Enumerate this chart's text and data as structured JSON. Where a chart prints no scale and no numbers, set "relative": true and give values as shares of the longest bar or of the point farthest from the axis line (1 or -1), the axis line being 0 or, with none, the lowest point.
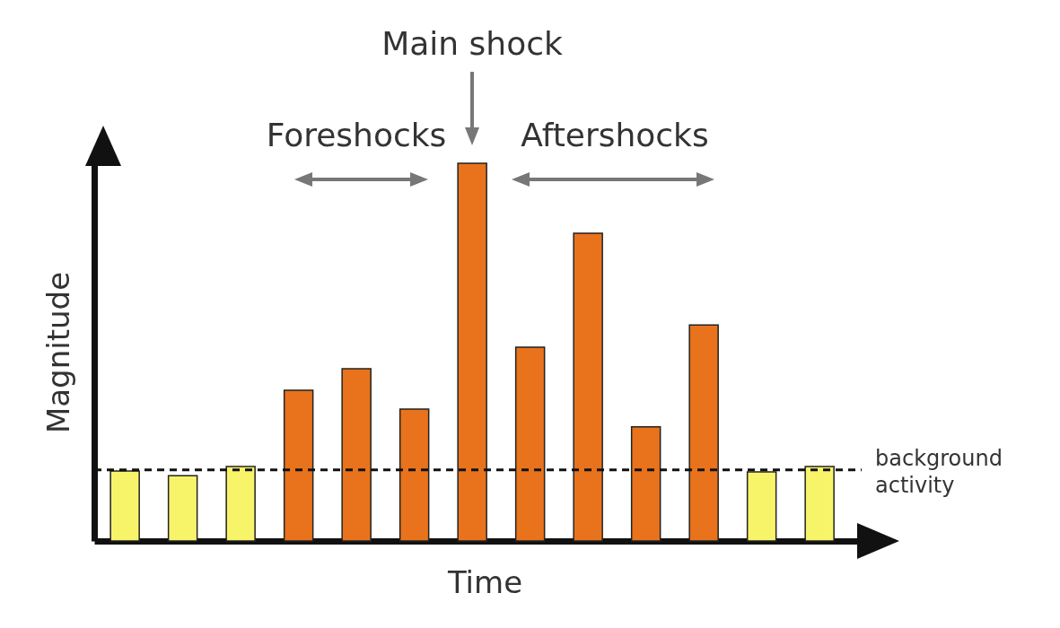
{
  "chart_data": {
    "type": "bar",
    "relative": true,
    "xlabel": "Time",
    "ylabel": "Magnitude",
    "categories": [
      null,
      null,
      null,
      null,
      null,
      null,
      null,
      null,
      null,
      null,
      null,
      null,
      null
    ],
    "values": [
      0.185,
      0.173,
      0.197,
      0.399,
      0.456,
      0.349,
      1,
      0.513,
      0.815,
      0.302,
      0.572,
      0.183,
      0.197
    ],
    "colors": [
      "#f8f46a",
      "#f8f46a",
      "#f8f46a",
      "#e8731c",
      "#e8731c",
      "#e8731c",
      "#e8731c",
      "#e8731c",
      "#e8731c",
      "#e8731c",
      "#e8731c",
      "#f8f46a",
      "#f8f46a"
    ],
    "ref_lines": [
      {
        "axis": "y",
        "value": 0.188,
        "label": "background activity",
        "color": "#111111",
        "line_style": "dashed"
      }
    ],
    "annotations": [
      "Main shock",
      "Foreshocks",
      "Aftershocks"
    ]
  }
}
